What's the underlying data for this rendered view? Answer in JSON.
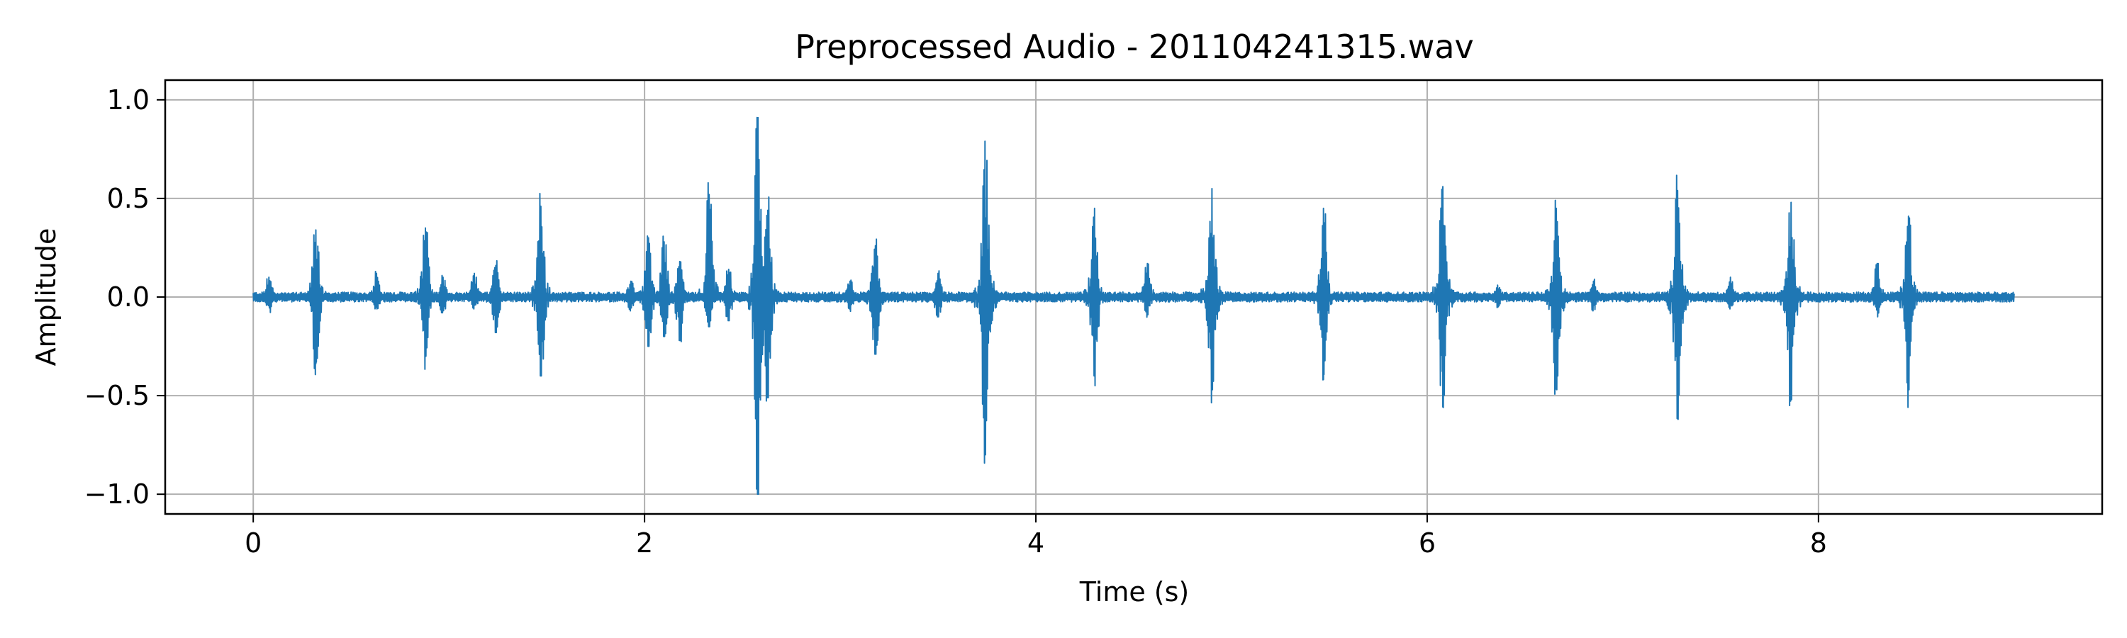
{
  "chart_data": {
    "type": "line",
    "title": "Preprocessed Audio - 201104241315.wav",
    "xlabel": "Time (s)",
    "ylabel": "Amplitude",
    "xlim": [
      -0.45,
      9.45
    ],
    "ylim": [
      -1.1,
      1.1
    ],
    "x_ticks": [
      0,
      2,
      4,
      6,
      8
    ],
    "x_tick_labels": [
      "0",
      "2",
      "4",
      "6",
      "8"
    ],
    "y_ticks": [
      1.0,
      0.5,
      0.0,
      -0.5,
      -1.0
    ],
    "y_tick_labels": [
      "1.0",
      "0.5",
      "0.0",
      "−0.5",
      "−1.0"
    ],
    "grid": true,
    "line_color": "#1f77b4",
    "grid_color": "#b0b0b0",
    "series": [
      {
        "duration_s": 9.0,
        "noise_amplitude": 0.025,
        "events": [
          {
            "t": 0.32,
            "max": 0.34,
            "min": -0.34
          },
          {
            "t": 0.88,
            "max": 0.35,
            "min": -0.3
          },
          {
            "t": 1.47,
            "max": 0.46,
            "min": -0.4
          },
          {
            "t": 2.02,
            "max": 0.3,
            "min": -0.25
          },
          {
            "t": 2.33,
            "max": 0.52,
            "min": -0.15
          },
          {
            "t": 2.58,
            "max": 0.91,
            "min": -1.0
          },
          {
            "t": 2.63,
            "max": 0.44,
            "min": -0.51
          },
          {
            "t": 3.18,
            "max": 0.26,
            "min": -0.29
          },
          {
            "t": 3.74,
            "max": 0.79,
            "min": -0.8
          },
          {
            "t": 4.3,
            "max": 0.45,
            "min": -0.4
          },
          {
            "t": 4.9,
            "max": 0.55,
            "min": -0.47
          },
          {
            "t": 5.47,
            "max": 0.45,
            "min": -0.42
          },
          {
            "t": 6.08,
            "max": 0.56,
            "min": -0.56
          },
          {
            "t": 6.66,
            "max": 0.45,
            "min": -0.47
          },
          {
            "t": 7.28,
            "max": 0.54,
            "min": -0.62
          },
          {
            "t": 7.86,
            "max": 0.48,
            "min": -0.52
          },
          {
            "t": 8.46,
            "max": 0.41,
            "min": -0.47
          }
        ],
        "minor_events": [
          {
            "t": 0.08,
            "max": 0.1,
            "min": -0.08
          },
          {
            "t": 0.63,
            "max": 0.12,
            "min": -0.06
          },
          {
            "t": 0.97,
            "max": 0.1,
            "min": -0.08
          },
          {
            "t": 1.13,
            "max": 0.12,
            "min": -0.06
          },
          {
            "t": 1.24,
            "max": 0.16,
            "min": -0.18
          },
          {
            "t": 1.93,
            "max": 0.08,
            "min": -0.07
          },
          {
            "t": 2.1,
            "max": 0.28,
            "min": -0.2
          },
          {
            "t": 2.18,
            "max": 0.18,
            "min": -0.22
          },
          {
            "t": 2.43,
            "max": 0.14,
            "min": -0.12
          },
          {
            "t": 3.05,
            "max": 0.08,
            "min": -0.06
          },
          {
            "t": 3.5,
            "max": 0.12,
            "min": -0.1
          },
          {
            "t": 4.57,
            "max": 0.17,
            "min": -0.09
          },
          {
            "t": 6.36,
            "max": 0.06,
            "min": -0.05
          },
          {
            "t": 6.85,
            "max": 0.08,
            "min": -0.07
          },
          {
            "t": 7.55,
            "max": 0.1,
            "min": -0.06
          },
          {
            "t": 8.3,
            "max": 0.17,
            "min": -0.1
          }
        ]
      }
    ]
  }
}
